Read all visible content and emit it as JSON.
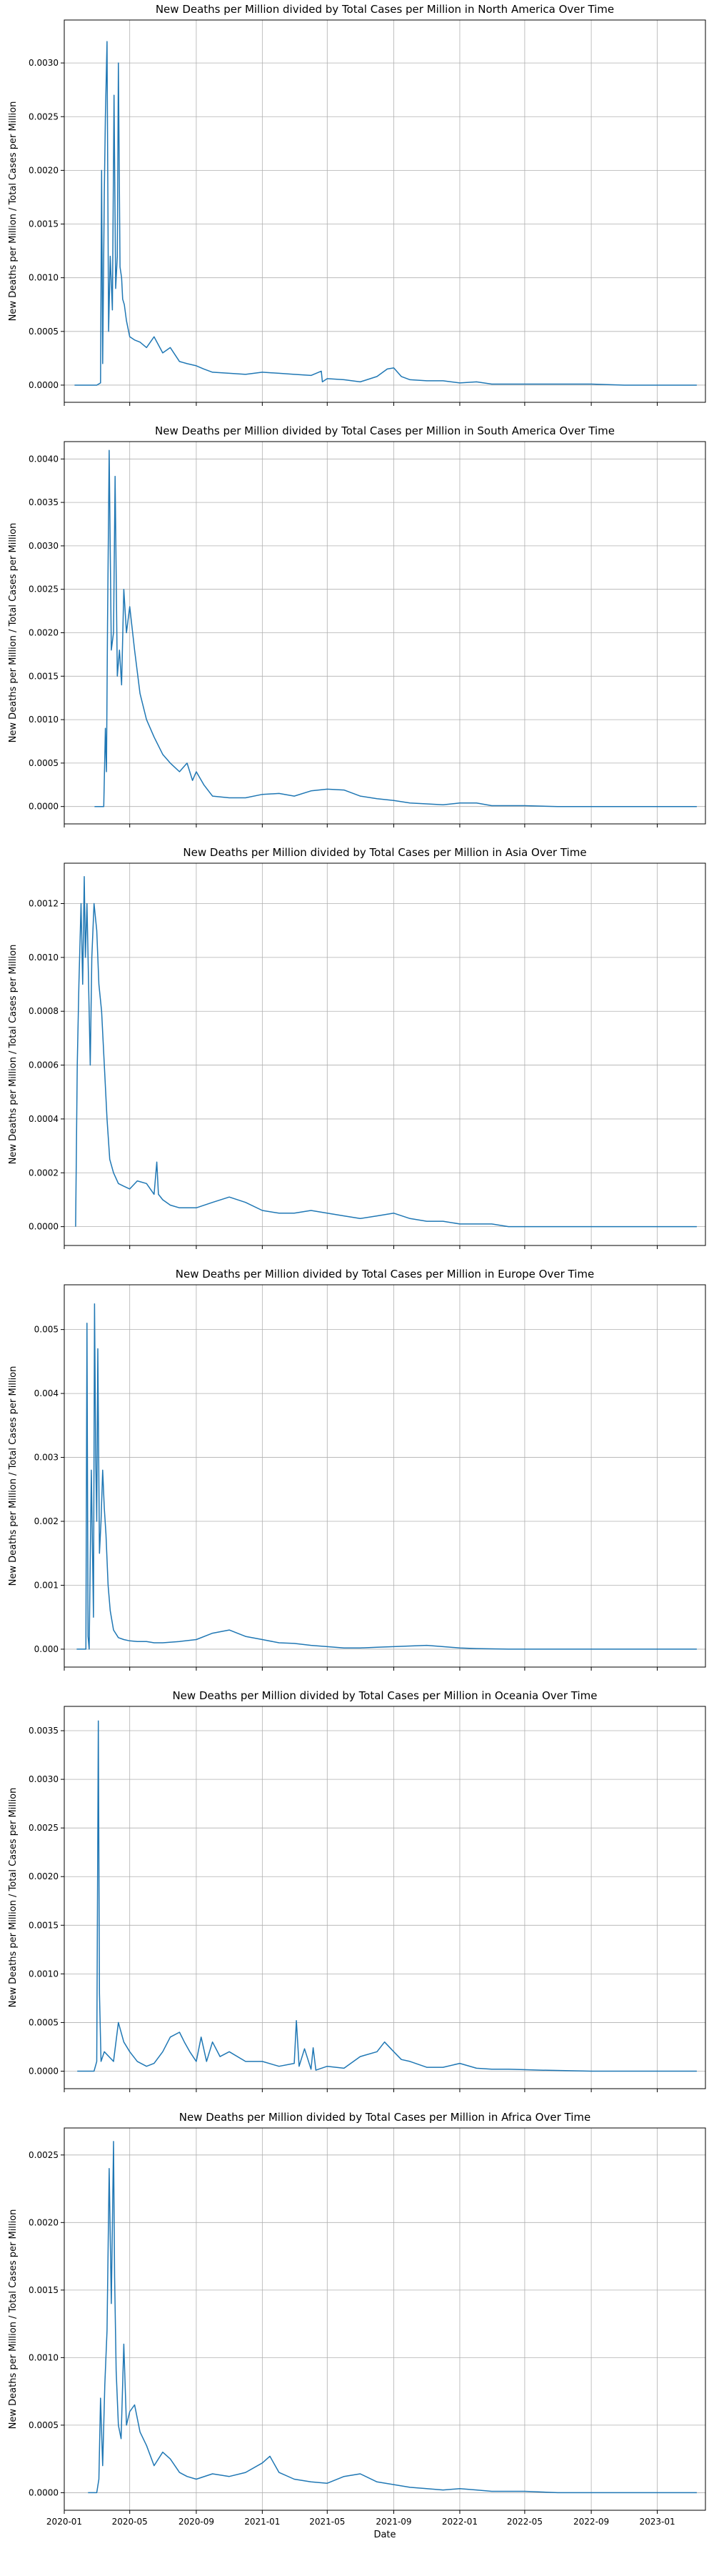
{
  "xlabel": "Date",
  "x_ticks": [
    "2020-01",
    "2020-05",
    "2020-09",
    "2021-01",
    "2021-05",
    "2021-09",
    "2022-01",
    "2022-05",
    "2022-09",
    "2023-01"
  ],
  "line_color": "#1f77b4",
  "chart_data": [
    {
      "type": "line",
      "title": "New Deaths per Million divided by Total Cases per Million in North America Over Time",
      "xlabel": "",
      "ylabel": "New Deaths per Million / Total Cases per Million",
      "xlim": [
        "2020-01-01",
        "2023-03-31"
      ],
      "ylim": [
        -0.00016,
        0.0034
      ],
      "yticks": [
        "0.0000",
        "0.0005",
        "0.0010",
        "0.0015",
        "0.0020",
        "0.0025",
        "0.0030"
      ],
      "grid": true,
      "series": [
        {
          "x": [
            "2020-01-20",
            "2020-03-01",
            "2020-03-08",
            "2020-03-10",
            "2020-03-12",
            "2020-03-15",
            "2020-03-17",
            "2020-03-20",
            "2020-03-23",
            "2020-03-26",
            "2020-03-30",
            "2020-04-02",
            "2020-04-05",
            "2020-04-08",
            "2020-04-10",
            "2020-04-13",
            "2020-04-16",
            "2020-04-18",
            "2020-04-21",
            "2020-04-25",
            "2020-05-01",
            "2020-05-10",
            "2020-05-20",
            "2020-06-01",
            "2020-06-15",
            "2020-07-01",
            "2020-07-15",
            "2020-08-01",
            "2020-08-15",
            "2020-09-01",
            "2020-09-15",
            "2020-10-01",
            "2020-11-01",
            "2020-12-01",
            "2021-01-01",
            "2021-02-01",
            "2021-03-01",
            "2021-04-01",
            "2021-04-20",
            "2021-04-22",
            "2021-05-01",
            "2021-06-01",
            "2021-07-01",
            "2021-08-01",
            "2021-08-20",
            "2021-09-01",
            "2021-09-15",
            "2021-10-01",
            "2021-11-01",
            "2021-12-01",
            "2022-01-01",
            "2022-02-01",
            "2022-03-01",
            "2022-05-01",
            "2022-07-01",
            "2022-09-01",
            "2022-11-01",
            "2023-01-01",
            "2023-03-15"
          ],
          "y": [
            0,
            0,
            2e-05,
            0.002,
            0.0002,
            0.0018,
            0.0025,
            0.0032,
            0.0005,
            0.0012,
            0.0007,
            0.0027,
            0.0009,
            0.0012,
            0.003,
            0.0011,
            0.001,
            0.0008,
            0.00075,
            0.0006,
            0.00045,
            0.00042,
            0.0004,
            0.00035,
            0.00045,
            0.0003,
            0.00035,
            0.00022,
            0.0002,
            0.00018,
            0.00015,
            0.00012,
            0.00011,
            0.0001,
            0.00012,
            0.00011,
            0.0001,
            9e-05,
            0.00013,
            3e-05,
            6e-05,
            5e-05,
            3e-05,
            8e-05,
            0.00015,
            0.00016,
            8e-05,
            5e-05,
            4e-05,
            4e-05,
            2e-05,
            3e-05,
            1e-05,
            1e-05,
            1e-05,
            1e-05,
            0.0,
            0.0,
            0
          ]
        }
      ]
    },
    {
      "type": "line",
      "title": "New Deaths per Million divided by Total Cases per Million in South America Over Time",
      "xlabel": "",
      "ylabel": "New Deaths per Million / Total Cases per Million",
      "xlim": [
        "2020-01-01",
        "2023-03-31"
      ],
      "ylim": [
        -0.0002,
        0.0042
      ],
      "yticks": [
        "0.0000",
        "0.0005",
        "0.0010",
        "0.0015",
        "0.0020",
        "0.0025",
        "0.0030",
        "0.0035",
        "0.0040"
      ],
      "grid": true,
      "series": [
        {
          "x": [
            "2020-02-26",
            "2020-03-14",
            "2020-03-17",
            "2020-03-19",
            "2020-03-21",
            "2020-03-24",
            "2020-03-28",
            "2020-04-01",
            "2020-04-04",
            "2020-04-08",
            "2020-04-12",
            "2020-04-16",
            "2020-04-20",
            "2020-04-25",
            "2020-05-01",
            "2020-05-10",
            "2020-05-20",
            "2020-06-01",
            "2020-06-15",
            "2020-07-01",
            "2020-07-15",
            "2020-08-01",
            "2020-08-15",
            "2020-08-25",
            "2020-09-01",
            "2020-09-15",
            "2020-10-01",
            "2020-11-01",
            "2020-12-01",
            "2021-01-01",
            "2021-02-01",
            "2021-03-01",
            "2021-04-01",
            "2021-05-01",
            "2021-06-01",
            "2021-07-01",
            "2021-08-01",
            "2021-09-01",
            "2021-10-01",
            "2021-11-01",
            "2021-12-01",
            "2022-01-01",
            "2022-02-01",
            "2022-03-01",
            "2022-05-01",
            "2022-07-01",
            "2022-09-01",
            "2022-11-01",
            "2023-01-01",
            "2023-03-15"
          ],
          "y": [
            0,
            0,
            0.0009,
            0.0004,
            0.0021,
            0.0041,
            0.0018,
            0.002,
            0.0038,
            0.0015,
            0.0018,
            0.0014,
            0.0025,
            0.002,
            0.0023,
            0.0018,
            0.0013,
            0.001,
            0.0008,
            0.0006,
            0.0005,
            0.0004,
            0.0005,
            0.0003,
            0.0004,
            0.00025,
            0.00012,
            0.0001,
            0.0001,
            0.00014,
            0.00015,
            0.00012,
            0.00018,
            0.0002,
            0.00019,
            0.00012,
            9e-05,
            7e-05,
            4e-05,
            3e-05,
            2e-05,
            4e-05,
            4e-05,
            1e-05,
            1e-05,
            0.0,
            0.0,
            0.0,
            0.0,
            0
          ]
        }
      ]
    },
    {
      "type": "line",
      "title": "New Deaths per Million divided by Total Cases per Million in Asia Over Time",
      "xlabel": "",
      "ylabel": "New Deaths per Million / Total Cases per Million",
      "xlim": [
        "2020-01-01",
        "2023-03-31"
      ],
      "ylim": [
        -7e-05,
        0.00135
      ],
      "yticks": [
        "0.0000",
        "0.0002",
        "0.0004",
        "0.0006",
        "0.0008",
        "0.0010",
        "0.0012"
      ],
      "grid": true,
      "series": [
        {
          "x": [
            "2020-01-22",
            "2020-01-25",
            "2020-01-28",
            "2020-02-01",
            "2020-02-04",
            "2020-02-07",
            "2020-02-09",
            "2020-02-12",
            "2020-02-15",
            "2020-02-18",
            "2020-02-21",
            "2020-02-25",
            "2020-03-01",
            "2020-03-05",
            "2020-03-10",
            "2020-03-15",
            "2020-03-20",
            "2020-03-25",
            "2020-04-01",
            "2020-04-10",
            "2020-04-20",
            "2020-05-01",
            "2020-05-15",
            "2020-06-01",
            "2020-06-15",
            "2020-06-20",
            "2020-06-23",
            "2020-07-01",
            "2020-07-15",
            "2020-08-01",
            "2020-09-01",
            "2020-10-01",
            "2020-11-01",
            "2020-12-01",
            "2021-01-01",
            "2021-02-01",
            "2021-03-01",
            "2021-04-01",
            "2021-05-01",
            "2021-06-01",
            "2021-07-01",
            "2021-08-01",
            "2021-09-01",
            "2021-10-01",
            "2021-11-01",
            "2021-12-01",
            "2022-01-01",
            "2022-02-01",
            "2022-03-01",
            "2022-04-01",
            "2022-06-01",
            "2022-09-01",
            "2022-12-01",
            "2023-03-15"
          ],
          "y": [
            0,
            0.0006,
            0.0009,
            0.0012,
            0.0009,
            0.0013,
            0.001,
            0.0012,
            0.0009,
            0.0006,
            0.001,
            0.0012,
            0.0011,
            0.0009,
            0.0008,
            0.0006,
            0.0004,
            0.00025,
            0.0002,
            0.00016,
            0.00015,
            0.00014,
            0.00017,
            0.00016,
            0.00012,
            0.00024,
            0.00012,
            0.0001,
            8e-05,
            7e-05,
            7e-05,
            9e-05,
            0.00011,
            9e-05,
            6e-05,
            5e-05,
            5e-05,
            6e-05,
            5e-05,
            4e-05,
            3e-05,
            4e-05,
            5e-05,
            3e-05,
            2e-05,
            2e-05,
            1e-05,
            1e-05,
            1e-05,
            0.0,
            0.0,
            0.0,
            0.0,
            0
          ]
        }
      ]
    },
    {
      "type": "line",
      "title": "New Deaths per Million divided by Total Cases per Million in Europe Over Time",
      "xlabel": "",
      "ylabel": "New Deaths per Million / Total Cases per Million",
      "xlim": [
        "2020-01-01",
        "2023-03-31"
      ],
      "ylim": [
        -0.00028,
        0.0057
      ],
      "yticks": [
        "0.000",
        "0.001",
        "0.002",
        "0.003",
        "0.004",
        "0.005"
      ],
      "grid": true,
      "series": [
        {
          "x": [
            "2020-01-24",
            "2020-02-10",
            "2020-02-12",
            "2020-02-14",
            "2020-02-16",
            "2020-02-20",
            "2020-02-24",
            "2020-02-26",
            "2020-02-28",
            "2020-03-01",
            "2020-03-03",
            "2020-03-06",
            "2020-03-09",
            "2020-03-12",
            "2020-03-15",
            "2020-03-18",
            "2020-03-22",
            "2020-03-26",
            "2020-04-01",
            "2020-04-10",
            "2020-04-20",
            "2020-05-01",
            "2020-05-15",
            "2020-06-01",
            "2020-06-15",
            "2020-07-01",
            "2020-08-01",
            "2020-09-01",
            "2020-10-01",
            "2020-11-01",
            "2020-12-01",
            "2021-01-01",
            "2021-02-01",
            "2021-03-01",
            "2021-04-01",
            "2021-05-01",
            "2021-06-01",
            "2021-07-01",
            "2021-08-01",
            "2021-09-01",
            "2021-10-01",
            "2021-11-01",
            "2021-12-01",
            "2022-01-01",
            "2022-02-01",
            "2022-04-01",
            "2022-06-01",
            "2022-09-01",
            "2022-12-01",
            "2023-03-15"
          ],
          "y": [
            0,
            0,
            0.0051,
            0.0002,
            0.0,
            0.0028,
            0.0005,
            0.0054,
            0.003,
            0.002,
            0.0047,
            0.0015,
            0.002,
            0.0028,
            0.0022,
            0.0018,
            0.001,
            0.0006,
            0.0003,
            0.00018,
            0.00015,
            0.00013,
            0.00012,
            0.00012,
            0.0001,
            0.0001,
            0.00012,
            0.00015,
            0.00025,
            0.0003,
            0.0002,
            0.00015,
            0.0001,
            9e-05,
            6e-05,
            4e-05,
            2e-05,
            2e-05,
            3e-05,
            4e-05,
            5e-05,
            6e-05,
            4e-05,
            2e-05,
            1e-05,
            0.0,
            0.0,
            0.0,
            0.0,
            0
          ]
        }
      ]
    },
    {
      "type": "line",
      "title": "New Deaths per Million divided by Total Cases per Million in Oceania Over Time",
      "xlabel": "",
      "ylabel": "New Deaths per Million / Total Cases per Million",
      "xlim": [
        "2020-01-01",
        "2023-03-31"
      ],
      "ylim": [
        -0.00018,
        0.00375
      ],
      "yticks": [
        "0.0000",
        "0.0005",
        "0.0010",
        "0.0015",
        "0.0020",
        "0.0025",
        "0.0030",
        "0.0035"
      ],
      "grid": true,
      "series": [
        {
          "x": [
            "2020-01-25",
            "2020-02-25",
            "2020-03-01",
            "2020-03-04",
            "2020-03-06",
            "2020-03-09",
            "2020-03-15",
            "2020-04-01",
            "2020-04-10",
            "2020-04-20",
            "2020-05-01",
            "2020-05-15",
            "2020-06-01",
            "2020-06-15",
            "2020-07-01",
            "2020-07-15",
            "2020-08-01",
            "2020-08-10",
            "2020-08-20",
            "2020-09-01",
            "2020-09-10",
            "2020-09-20",
            "2020-10-01",
            "2020-10-15",
            "2020-11-01",
            "2020-12-01",
            "2021-01-01",
            "2021-02-01",
            "2021-03-01",
            "2021-03-05",
            "2021-03-10",
            "2021-03-20",
            "2021-04-01",
            "2021-04-05",
            "2021-04-10",
            "2021-05-01",
            "2021-06-01",
            "2021-07-01",
            "2021-08-01",
            "2021-08-15",
            "2021-09-01",
            "2021-09-15",
            "2021-10-01",
            "2021-11-01",
            "2021-12-01",
            "2022-01-01",
            "2022-02-01",
            "2022-03-01",
            "2022-04-01",
            "2022-06-01",
            "2022-09-01",
            "2022-12-01",
            "2023-03-15"
          ],
          "y": [
            0,
            0,
            0.0001,
            0.0036,
            0.0008,
            0.0001,
            0.0002,
            0.0001,
            0.0005,
            0.0003,
            0.0002,
            0.0001,
            5e-05,
            8e-05,
            0.0002,
            0.00035,
            0.0004,
            0.0003,
            0.0002,
            0.0001,
            0.00035,
            0.0001,
            0.0003,
            0.00015,
            0.0002,
            0.0001,
            0.0001,
            5e-05,
            8e-05,
            0.00052,
            5e-05,
            0.00023,
            2e-05,
            0.00024,
            1e-05,
            5e-05,
            3e-05,
            0.00015,
            0.0002,
            0.0003,
            0.0002,
            0.00012,
            0.0001,
            4e-05,
            4e-05,
            8e-05,
            3e-05,
            2e-05,
            2e-05,
            1e-05,
            0.0,
            0.0,
            0
          ]
        }
      ]
    },
    {
      "type": "line",
      "title": "New Deaths per Million divided by Total Cases per Million in Africa Over Time",
      "xlabel": "Date",
      "ylabel": "New Deaths per Million / Total Cases per Million",
      "xlim": [
        "2020-01-01",
        "2023-03-31"
      ],
      "ylim": [
        -0.00013,
        0.0027
      ],
      "yticks": [
        "0.0000",
        "0.0005",
        "0.0010",
        "0.0015",
        "0.0020",
        "0.0025"
      ],
      "grid": true,
      "series": [
        {
          "x": [
            "2020-02-14",
            "2020-03-01",
            "2020-03-05",
            "2020-03-08",
            "2020-03-12",
            "2020-03-16",
            "2020-03-20",
            "2020-03-24",
            "2020-03-28",
            "2020-04-01",
            "2020-04-03",
            "2020-04-06",
            "2020-04-10",
            "2020-04-15",
            "2020-04-20",
            "2020-04-25",
            "2020-05-01",
            "2020-05-10",
            "2020-05-20",
            "2020-06-01",
            "2020-06-15",
            "2020-07-01",
            "2020-07-15",
            "2020-08-01",
            "2020-08-15",
            "2020-09-01",
            "2020-10-01",
            "2020-11-01",
            "2020-12-01",
            "2021-01-01",
            "2021-01-15",
            "2021-02-01",
            "2021-03-01",
            "2021-04-01",
            "2021-05-01",
            "2021-06-01",
            "2021-07-01",
            "2021-08-01",
            "2021-09-01",
            "2021-10-01",
            "2021-11-01",
            "2021-12-01",
            "2022-01-01",
            "2022-02-01",
            "2022-03-01",
            "2022-05-01",
            "2022-07-01",
            "2022-09-01",
            "2022-12-01",
            "2023-03-15"
          ],
          "y": [
            0,
            0,
            0.0001,
            0.0007,
            0.0002,
            0.0008,
            0.0012,
            0.0024,
            0.0014,
            0.0026,
            0.0016,
            0.0009,
            0.0005,
            0.0004,
            0.0011,
            0.0005,
            0.0006,
            0.00065,
            0.00045,
            0.00035,
            0.0002,
            0.0003,
            0.00025,
            0.00015,
            0.00012,
            0.0001,
            0.00014,
            0.00012,
            0.00015,
            0.00022,
            0.00027,
            0.00015,
            0.0001,
            8e-05,
            7e-05,
            0.00012,
            0.00014,
            8e-05,
            6e-05,
            4e-05,
            3e-05,
            2e-05,
            3e-05,
            2e-05,
            1e-05,
            1e-05,
            0.0,
            0.0,
            0.0,
            0
          ]
        }
      ]
    }
  ]
}
